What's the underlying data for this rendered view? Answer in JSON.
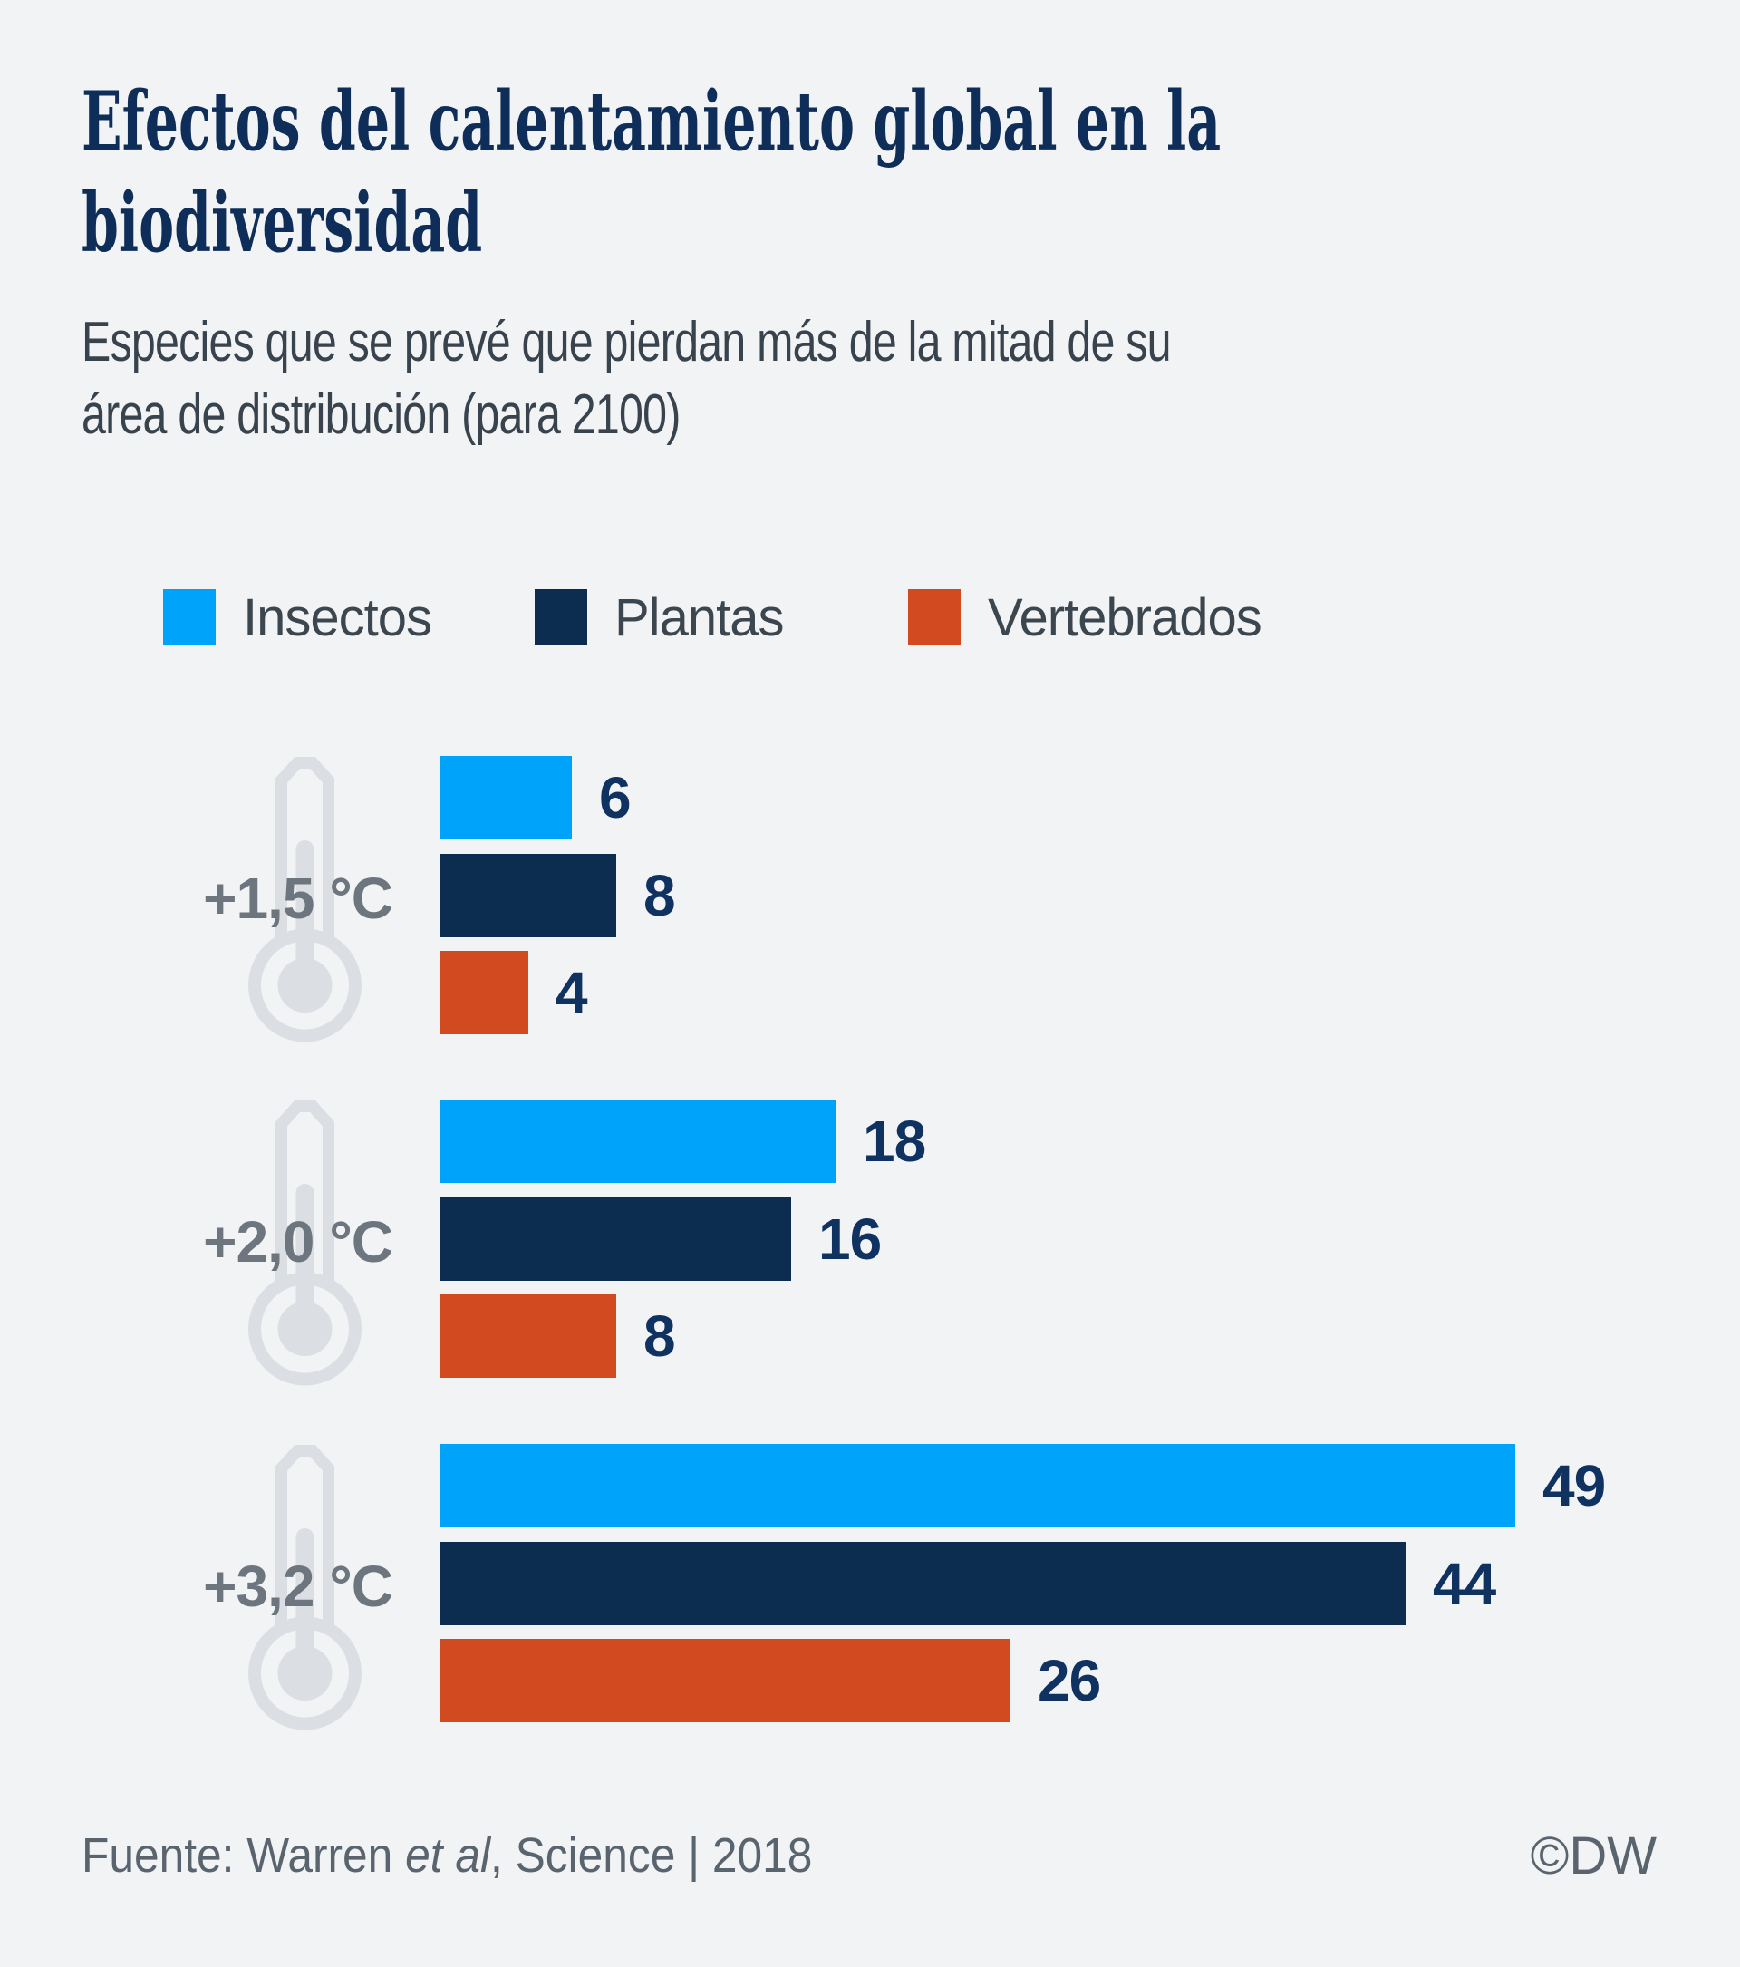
{
  "title_lines": [
    "Efectos del calentamiento global en la",
    "biodiversidad"
  ],
  "subtitle_lines": [
    "Especies que se prevé que pierdan más de la mitad de su",
    "área de distribución (para 2100)"
  ],
  "chart_data": {
    "type": "bar",
    "orientation": "horizontal",
    "title": "Efectos del calentamiento global en la biodiversidad",
    "subtitle": "Especies que se prevé que pierdan más de la mitad de su área de distribución (para 2100)",
    "categories": [
      "+1,5 °C",
      "+2,0 °C",
      "+3,2 °C"
    ],
    "series": [
      {
        "name": "Insectos",
        "color": "#00a3fa",
        "values": [
          6,
          18,
          49
        ]
      },
      {
        "name": "Plantas",
        "color": "#0d2d50",
        "values": [
          8,
          16,
          44
        ]
      },
      {
        "name": "Vertebrados",
        "color": "#d14a20",
        "values": [
          4,
          8,
          26
        ]
      }
    ],
    "value_labels": true,
    "xlim": [
      0,
      49
    ],
    "grid": false,
    "legend_position": "top",
    "source": "Fuente: Warren et al, Science | 2018",
    "credit": "©DW"
  },
  "footer": {
    "source_prefix": "Fuente: Warren ",
    "source_italic": "et al",
    "source_suffix": ", Science | 2018",
    "credit": "©DW"
  },
  "colors": {
    "background": "#f1f3f5",
    "title": "#0e2d58",
    "subtitle": "#39434d",
    "legend_text": "#3c464f",
    "insects": "#00a3fa",
    "plants": "#0d2d50",
    "vertebrates": "#d14a20",
    "value_label": "#0f3261",
    "temp_label": "#6d757e",
    "thermometer": "#dbdfe4",
    "footer_text": "#5a646e"
  }
}
